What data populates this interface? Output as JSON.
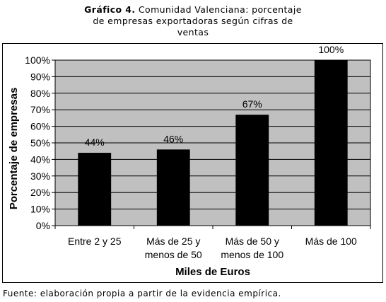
{
  "title_lead": "Gráfico 4.",
  "title_line1_rest": "Comunidad Valenciana: porcentaje",
  "title_line2": "de empresas exportadoras según cifras de",
  "title_line3": "ventas",
  "source_note": "Fuente: elaboración propia a partir de la  evidencia empírica.",
  "colors": {
    "bar": "#000000",
    "plot_bg": "#c0c0c0",
    "grid": "#000000"
  },
  "chart_data": {
    "type": "bar",
    "categories": [
      [
        "Entre 2 y 25"
      ],
      [
        "Más de 25 y",
        "menos de 50"
      ],
      [
        "Más de 50 y",
        "menos de 100"
      ],
      [
        "Más de 100"
      ]
    ],
    "values": [
      44,
      46,
      67,
      100
    ],
    "data_labels": [
      "44%",
      "46%",
      "67%",
      "100%"
    ],
    "xlabel": "Miles de Euros",
    "ylabel": "Porcentaje de empresas",
    "ylim": [
      0,
      100
    ],
    "ytick_labels": [
      "0%",
      "10%",
      "20%",
      "30%",
      "40%",
      "50%",
      "60%",
      "70%",
      "80%",
      "90%",
      "100%"
    ],
    "grid": true,
    "legend": "none"
  }
}
